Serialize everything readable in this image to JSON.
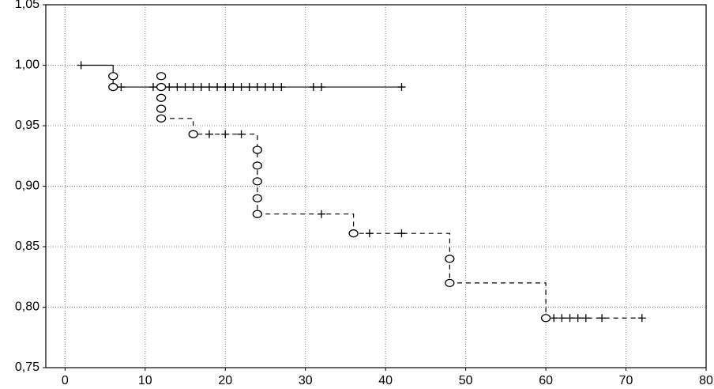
{
  "chart_data": {
    "type": "step",
    "xlim": [
      -2.4,
      80
    ],
    "xticks": [
      0,
      10,
      20,
      30,
      40,
      50,
      60,
      70,
      80
    ],
    "ylim": [
      0.75,
      1.05
    ],
    "yticks": [
      {
        "value": 0.75,
        "label": "0,75"
      },
      {
        "value": 0.8,
        "label": "0,80"
      },
      {
        "value": 0.85,
        "label": "0,85"
      },
      {
        "value": 0.9,
        "label": "0,90"
      },
      {
        "value": 0.95,
        "label": "0,95"
      },
      {
        "value": 1.0,
        "label": "1,00"
      },
      {
        "value": 1.05,
        "label": "1,05"
      }
    ],
    "grid": true,
    "series": [
      {
        "color": "#000000",
        "dashed": false,
        "x": [
          2,
          6,
          6,
          42
        ],
        "values": [
          1.0,
          1.0,
          0.982,
          0.982
        ],
        "events_x": [
          6,
          6
        ],
        "events_y": [
          0.991,
          0.982
        ],
        "censored_x": [
          2,
          7,
          11,
          13,
          14,
          15,
          16,
          17,
          18,
          19,
          20,
          21,
          22,
          23,
          24,
          25,
          26,
          27,
          31,
          32,
          42
        ],
        "censored_y": [
          1.0,
          0.982,
          0.982,
          0.982,
          0.982,
          0.982,
          0.982,
          0.982,
          0.982,
          0.982,
          0.982,
          0.982,
          0.982,
          0.982,
          0.982,
          0.982,
          0.982,
          0.982,
          0.982,
          0.982,
          0.982
        ]
      },
      {
        "color": "#000000",
        "dashed": true,
        "x": [
          12,
          16,
          16,
          24,
          24,
          36,
          36,
          48,
          48,
          60,
          60,
          72
        ],
        "values": [
          0.956,
          0.956,
          0.943,
          0.943,
          0.877,
          0.877,
          0.861,
          0.861,
          0.82,
          0.82,
          0.791,
          0.791
        ],
        "events_x": [
          12,
          12,
          12,
          12,
          12,
          16,
          24,
          24,
          24,
          24,
          24,
          36,
          48,
          48,
          60
        ],
        "events_y": [
          0.991,
          0.982,
          0.973,
          0.964,
          0.956,
          0.943,
          0.93,
          0.917,
          0.904,
          0.89,
          0.877,
          0.861,
          0.84,
          0.82,
          0.791
        ],
        "censored_x": [
          18,
          20,
          22,
          32,
          38,
          42,
          61,
          62,
          63,
          64,
          65,
          67,
          72
        ],
        "censored_y": [
          0.943,
          0.943,
          0.943,
          0.877,
          0.861,
          0.861,
          0.791,
          0.791,
          0.791,
          0.791,
          0.791,
          0.791,
          0.791
        ]
      }
    ]
  }
}
